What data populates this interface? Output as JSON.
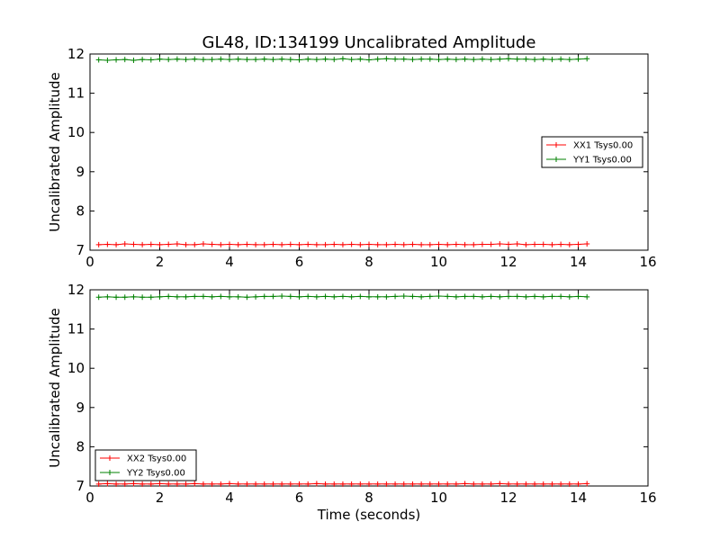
{
  "title": "GL48, ID:134199 Uncalibrated Amplitude",
  "colors": {
    "red": "#ff0000",
    "green": "#008000"
  },
  "chart_data": [
    {
      "type": "line",
      "title": "GL48, ID:134199 Uncalibrated Amplitude",
      "xlabel": "",
      "ylabel": "Uncalibrated Amplitude",
      "xlim": [
        0,
        16
      ],
      "ylim": [
        7,
        12
      ],
      "xticks": [
        "0",
        "2",
        "4",
        "6",
        "8",
        "10",
        "12",
        "14",
        "16"
      ],
      "yticks": [
        "7",
        "8",
        "9",
        "10",
        "11",
        "12"
      ],
      "legend_position": "center-right",
      "series": [
        {
          "name": "XX1 Tsys0.00",
          "color": "#ff0000",
          "x": [
            0.25,
            0.5,
            0.75,
            1.0,
            1.25,
            1.5,
            1.75,
            2.0,
            2.25,
            2.5,
            2.75,
            3.0,
            3.25,
            3.5,
            3.75,
            4.0,
            4.25,
            4.5,
            4.75,
            5.0,
            5.25,
            5.5,
            5.75,
            6.0,
            6.25,
            6.5,
            6.75,
            7.0,
            7.25,
            7.5,
            7.75,
            8.0,
            8.25,
            8.5,
            8.75,
            9.0,
            9.25,
            9.5,
            9.75,
            10.0,
            10.25,
            10.5,
            10.75,
            11.0,
            11.25,
            11.5,
            11.75,
            12.0,
            12.25,
            12.5,
            12.75,
            13.0,
            13.25,
            13.5,
            13.75,
            14.0,
            14.25
          ],
          "y": [
            7.14,
            7.15,
            7.14,
            7.16,
            7.15,
            7.14,
            7.15,
            7.14,
            7.15,
            7.16,
            7.14,
            7.14,
            7.16,
            7.15,
            7.14,
            7.15,
            7.14,
            7.15,
            7.14,
            7.14,
            7.15,
            7.14,
            7.15,
            7.14,
            7.15,
            7.14,
            7.14,
            7.15,
            7.14,
            7.15,
            7.14,
            7.15,
            7.14,
            7.14,
            7.15,
            7.14,
            7.15,
            7.14,
            7.14,
            7.15,
            7.14,
            7.15,
            7.14,
            7.14,
            7.15,
            7.15,
            7.16,
            7.15,
            7.16,
            7.14,
            7.15,
            7.15,
            7.14,
            7.15,
            7.14,
            7.15,
            7.16
          ]
        },
        {
          "name": "YY1 Tsys0.00",
          "color": "#008000",
          "x": [
            0.25,
            0.5,
            0.75,
            1.0,
            1.25,
            1.5,
            1.75,
            2.0,
            2.25,
            2.5,
            2.75,
            3.0,
            3.25,
            3.5,
            3.75,
            4.0,
            4.25,
            4.5,
            4.75,
            5.0,
            5.25,
            5.5,
            5.75,
            6.0,
            6.25,
            6.5,
            6.75,
            7.0,
            7.25,
            7.5,
            7.75,
            8.0,
            8.25,
            8.5,
            8.75,
            9.0,
            9.25,
            9.5,
            9.75,
            10.0,
            10.25,
            10.5,
            10.75,
            11.0,
            11.25,
            11.5,
            11.75,
            12.0,
            12.25,
            12.5,
            12.75,
            13.0,
            13.25,
            13.5,
            13.75,
            14.0,
            14.25
          ],
          "y": [
            11.85,
            11.84,
            11.85,
            11.86,
            11.84,
            11.86,
            11.85,
            11.87,
            11.86,
            11.87,
            11.86,
            11.87,
            11.86,
            11.86,
            11.87,
            11.86,
            11.87,
            11.86,
            11.86,
            11.87,
            11.86,
            11.87,
            11.86,
            11.85,
            11.87,
            11.86,
            11.87,
            11.86,
            11.88,
            11.86,
            11.87,
            11.85,
            11.87,
            11.88,
            11.87,
            11.87,
            11.86,
            11.87,
            11.87,
            11.86,
            11.87,
            11.86,
            11.87,
            11.86,
            11.87,
            11.86,
            11.87,
            11.88,
            11.87,
            11.87,
            11.86,
            11.87,
            11.86,
            11.87,
            11.86,
            11.87,
            11.88
          ]
        }
      ]
    },
    {
      "type": "line",
      "title": "",
      "xlabel": "Time (seconds)",
      "ylabel": "Uncalibrated Amplitude",
      "xlim": [
        0,
        16
      ],
      "ylim": [
        7,
        12
      ],
      "xticks": [
        "0",
        "2",
        "4",
        "6",
        "8",
        "10",
        "12",
        "14",
        "16"
      ],
      "yticks": [
        "7",
        "8",
        "9",
        "10",
        "11",
        "12"
      ],
      "legend_position": "lower-left",
      "series": [
        {
          "name": "XX2 Tsys0.00",
          "color": "#ff0000",
          "x": [
            0.25,
            0.5,
            0.75,
            1.0,
            1.25,
            1.5,
            1.75,
            2.0,
            2.25,
            2.5,
            2.75,
            3.0,
            3.25,
            3.5,
            3.75,
            4.0,
            4.25,
            4.5,
            4.75,
            5.0,
            5.25,
            5.5,
            5.75,
            6.0,
            6.25,
            6.5,
            6.75,
            7.0,
            7.25,
            7.5,
            7.75,
            8.0,
            8.25,
            8.5,
            8.75,
            9.0,
            9.25,
            9.5,
            9.75,
            10.0,
            10.25,
            10.5,
            10.75,
            11.0,
            11.25,
            11.5,
            11.75,
            12.0,
            12.25,
            12.5,
            12.75,
            13.0,
            13.25,
            13.5,
            13.75,
            14.0,
            14.25
          ],
          "y": [
            7.05,
            7.06,
            7.05,
            7.05,
            7.06,
            7.05,
            7.05,
            7.06,
            7.05,
            7.05,
            7.05,
            7.06,
            7.05,
            7.05,
            7.05,
            7.06,
            7.05,
            7.05,
            7.05,
            7.05,
            7.05,
            7.05,
            7.05,
            7.05,
            7.05,
            7.06,
            7.05,
            7.05,
            7.05,
            7.05,
            7.05,
            7.05,
            7.05,
            7.05,
            7.05,
            7.05,
            7.05,
            7.05,
            7.05,
            7.05,
            7.05,
            7.05,
            7.06,
            7.05,
            7.05,
            7.05,
            7.06,
            7.05,
            7.05,
            7.05,
            7.05,
            7.05,
            7.05,
            7.05,
            7.05,
            7.05,
            7.06
          ]
        },
        {
          "name": "YY2 Tsys0.00",
          "color": "#008000",
          "x": [
            0.25,
            0.5,
            0.75,
            1.0,
            1.25,
            1.5,
            1.75,
            2.0,
            2.25,
            2.5,
            2.75,
            3.0,
            3.25,
            3.5,
            3.75,
            4.0,
            4.25,
            4.5,
            4.75,
            5.0,
            5.25,
            5.5,
            5.75,
            6.0,
            6.25,
            6.5,
            6.75,
            7.0,
            7.25,
            7.5,
            7.75,
            8.0,
            8.25,
            8.5,
            8.75,
            9.0,
            9.25,
            9.5,
            9.75,
            10.0,
            10.25,
            10.5,
            10.75,
            11.0,
            11.25,
            11.5,
            11.75,
            12.0,
            12.25,
            12.5,
            12.75,
            13.0,
            13.25,
            13.5,
            13.75,
            14.0,
            14.25
          ],
          "y": [
            11.81,
            11.82,
            11.81,
            11.81,
            11.82,
            11.81,
            11.81,
            11.82,
            11.83,
            11.82,
            11.82,
            11.83,
            11.83,
            11.82,
            11.83,
            11.82,
            11.82,
            11.81,
            11.82,
            11.83,
            11.83,
            11.84,
            11.83,
            11.82,
            11.83,
            11.82,
            11.83,
            11.82,
            11.83,
            11.82,
            11.83,
            11.82,
            11.82,
            11.82,
            11.83,
            11.84,
            11.83,
            11.82,
            11.83,
            11.84,
            11.83,
            11.82,
            11.83,
            11.83,
            11.82,
            11.83,
            11.82,
            11.83,
            11.83,
            11.82,
            11.83,
            11.82,
            11.83,
            11.83,
            11.82,
            11.83,
            11.82
          ]
        }
      ]
    }
  ]
}
